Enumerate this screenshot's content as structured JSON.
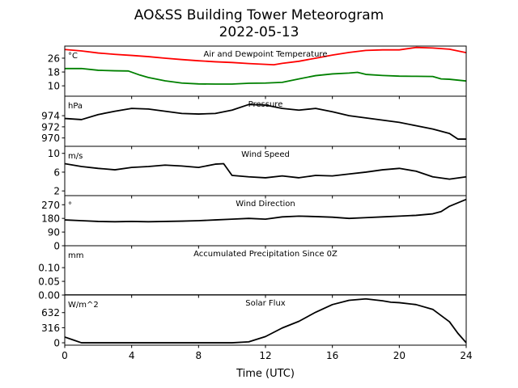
{
  "page": {
    "title": "AO&SS Building Tower Meteorogram",
    "subtitle": "2022-05-13"
  },
  "chart_data": {
    "type": "line",
    "xlabel": "Time (UTC)",
    "xlim": [
      0,
      24
    ],
    "x_ticks": [
      0,
      4,
      8,
      12,
      16,
      20,
      24
    ],
    "grid": false,
    "panels": [
      {
        "title": "Air and Dewpoint Temperature",
        "unit_label": "°C",
        "ylim": [
          4,
          33
        ],
        "y_ticks": [
          10,
          18,
          26
        ],
        "series": [
          {
            "color": "#ff0000",
            "points": [
              [
                0,
                31
              ],
              [
                1,
                30.2
              ],
              [
                2,
                29
              ],
              [
                3,
                28.2
              ],
              [
                4,
                27.6
              ],
              [
                5,
                26.9
              ],
              [
                6,
                26.0
              ],
              [
                7,
                25.2
              ],
              [
                8,
                24.5
              ],
              [
                9,
                23.9
              ],
              [
                10,
                23.5
              ],
              [
                11,
                22.9
              ],
              [
                12,
                22.4
              ],
              [
                12.5,
                22.2
              ],
              [
                13,
                23.0
              ],
              [
                14,
                24.2
              ],
              [
                15,
                26.0
              ],
              [
                16,
                27.8
              ],
              [
                17,
                29.3
              ],
              [
                18,
                30.5
              ],
              [
                19,
                30.8
              ],
              [
                20,
                30.8
              ],
              [
                21,
                32.2
              ],
              [
                22,
                31.9
              ],
              [
                23,
                31.2
              ],
              [
                24,
                29.2
              ]
            ]
          },
          {
            "color": "#008000",
            "points": [
              [
                0,
                20.0
              ],
              [
                1,
                20.0
              ],
              [
                2,
                19.0
              ],
              [
                3,
                18.7
              ],
              [
                3.8,
                18.6
              ],
              [
                4.5,
                16.2
              ],
              [
                5,
                14.8
              ],
              [
                6,
                12.9
              ],
              [
                7,
                11.6
              ],
              [
                8,
                11.1
              ],
              [
                9,
                11.0
              ],
              [
                10,
                11.0
              ],
              [
                11,
                11.5
              ],
              [
                12,
                11.6
              ],
              [
                13,
                12.0
              ],
              [
                14,
                14.0
              ],
              [
                15,
                15.9
              ],
              [
                16,
                16.9
              ],
              [
                17,
                17.4
              ],
              [
                17.5,
                17.8
              ],
              [
                18,
                16.6
              ],
              [
                19,
                16.0
              ],
              [
                20,
                15.6
              ],
              [
                21,
                15.5
              ],
              [
                22,
                15.4
              ],
              [
                22.5,
                14.0
              ],
              [
                23,
                13.8
              ],
              [
                24,
                12.8
              ]
            ]
          }
        ]
      },
      {
        "title": "Pressure",
        "unit_label": "hPa",
        "ylim": [
          968.5,
          977.5
        ],
        "y_ticks": [
          970,
          972,
          974
        ],
        "series": [
          {
            "color": "#000000",
            "points": [
              [
                0,
                973.5
              ],
              [
                1,
                973.3
              ],
              [
                2,
                974.2
              ],
              [
                3,
                974.8
              ],
              [
                4,
                975.3
              ],
              [
                5,
                975.2
              ],
              [
                6,
                974.8
              ],
              [
                7,
                974.4
              ],
              [
                8,
                974.3
              ],
              [
                9,
                974.4
              ],
              [
                10,
                975.0
              ],
              [
                11,
                976.0
              ],
              [
                12,
                975.9
              ],
              [
                13,
                975.3
              ],
              [
                14,
                975.0
              ],
              [
                15,
                975.3
              ],
              [
                16,
                974.7
              ],
              [
                17,
                974.0
              ],
              [
                18,
                973.6
              ],
              [
                19,
                973.2
              ],
              [
                20,
                972.8
              ],
              [
                21,
                972.2
              ],
              [
                22,
                971.6
              ],
              [
                23,
                970.8
              ],
              [
                23.5,
                969.8
              ],
              [
                24,
                969.8
              ]
            ]
          }
        ]
      },
      {
        "title": "Wind Speed",
        "unit_label": "m/s",
        "ylim": [
          1,
          11.5
        ],
        "y_ticks": [
          2,
          6,
          10
        ],
        "series": [
          {
            "color": "#000000",
            "points": [
              [
                0,
                7.8
              ],
              [
                1,
                7.2
              ],
              [
                2,
                6.8
              ],
              [
                3,
                6.5
              ],
              [
                4,
                7.0
              ],
              [
                5,
                7.2
              ],
              [
                6,
                7.5
              ],
              [
                7,
                7.3
              ],
              [
                8,
                7.0
              ],
              [
                9,
                7.7
              ],
              [
                9.5,
                7.8
              ],
              [
                10,
                5.3
              ],
              [
                11,
                5.0
              ],
              [
                12,
                4.8
              ],
              [
                13,
                5.2
              ],
              [
                14,
                4.8
              ],
              [
                15,
                5.3
              ],
              [
                16,
                5.2
              ],
              [
                17,
                5.6
              ],
              [
                18,
                6.0
              ],
              [
                19,
                6.5
              ],
              [
                20,
                6.8
              ],
              [
                21,
                6.2
              ],
              [
                22,
                5.0
              ],
              [
                23,
                4.5
              ],
              [
                24,
                5.0
              ]
            ]
          }
        ]
      },
      {
        "title": "Wind Direction",
        "unit_label": "°",
        "ylim": [
          0,
          330
        ],
        "y_ticks": [
          0,
          90,
          180,
          270
        ],
        "series": [
          {
            "color": "#000000",
            "points": [
              [
                0,
                170
              ],
              [
                1,
                165
              ],
              [
                2,
                160
              ],
              [
                3,
                158
              ],
              [
                4,
                160
              ],
              [
                5,
                158
              ],
              [
                6,
                160
              ],
              [
                7,
                162
              ],
              [
                8,
                165
              ],
              [
                9,
                170
              ],
              [
                10,
                175
              ],
              [
                11,
                180
              ],
              [
                12,
                175
              ],
              [
                13,
                190
              ],
              [
                14,
                195
              ],
              [
                15,
                192
              ],
              [
                16,
                188
              ],
              [
                17,
                180
              ],
              [
                18,
                185
              ],
              [
                19,
                190
              ],
              [
                20,
                195
              ],
              [
                21,
                200
              ],
              [
                22,
                210
              ],
              [
                22.5,
                225
              ],
              [
                23,
                260
              ],
              [
                24,
                305
              ]
            ]
          }
        ]
      },
      {
        "title": "Accumulated Precipitation Since 0Z",
        "unit_label": "mm",
        "ylim": [
          0,
          0.18
        ],
        "y_ticks": [
          0.0,
          0.05,
          0.1
        ],
        "y_tick_labels": [
          "0.00",
          "0.05",
          "0.10"
        ],
        "series": [
          {
            "color": "#000000",
            "points": [
              [
                0,
                0
              ],
              [
                24,
                0
              ]
            ]
          }
        ]
      },
      {
        "title": "Solar Flux",
        "unit_label": "W/m^2",
        "ylim": [
          -50,
          1000
        ],
        "y_ticks": [
          0,
          316,
          632
        ],
        "series": [
          {
            "color": "#000000",
            "points": [
              [
                0,
                120
              ],
              [
                0.5,
                60
              ],
              [
                1,
                0
              ],
              [
                6,
                0
              ],
              [
                10,
                0
              ],
              [
                11,
                20
              ],
              [
                12,
                130
              ],
              [
                13,
                310
              ],
              [
                14,
                450
              ],
              [
                15,
                640
              ],
              [
                16,
                800
              ],
              [
                17,
                890
              ],
              [
                18,
                920
              ],
              [
                19,
                880
              ],
              [
                19.5,
                850
              ],
              [
                20,
                840
              ],
              [
                21,
                800
              ],
              [
                22,
                700
              ],
              [
                23,
                440
              ],
              [
                23.5,
                200
              ],
              [
                24,
                0
              ]
            ]
          }
        ]
      }
    ]
  }
}
